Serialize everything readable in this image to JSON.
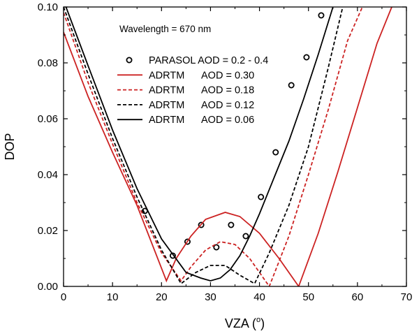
{
  "chart_data": {
    "type": "line",
    "annotation": "Wavelength = 670 nm",
    "xlabel": "VZA (",
    "xlabel_sup": "o",
    "xlabel_end": ")",
    "ylabel": "DOP",
    "xlim": [
      0,
      70
    ],
    "ylim": [
      0,
      0.1
    ],
    "x_ticks": [
      0,
      10,
      20,
      30,
      40,
      50,
      60,
      70
    ],
    "x_tick_labels": [
      "0",
      "10",
      "20",
      "30",
      "40",
      "50",
      "60",
      "70"
    ],
    "y_ticks": [
      0,
      0.02,
      0.04,
      0.06,
      0.08,
      0.1
    ],
    "y_tick_labels": [
      "0.00",
      "0.02",
      "0.04",
      "0.06",
      "0.08",
      "0.10"
    ],
    "grid": false,
    "legend_position": "upper-center",
    "series": [
      {
        "name": "PARASOL AOD = 0.2 - 0.4",
        "legend_label": "PARASOL AOD = 0.2 - 0.4",
        "style": "markers",
        "marker": "open-circle",
        "color": "#000000",
        "x": [
          16.6,
          22.3,
          25.3,
          28.1,
          31.2,
          34.2,
          37.2,
          40.3,
          43.3,
          46.5,
          49.6,
          52.6
        ],
        "y": [
          0.027,
          0.011,
          0.016,
          0.022,
          0.014,
          0.022,
          0.018,
          0.032,
          0.048,
          0.072,
          0.082,
          0.097
        ]
      },
      {
        "name": "ADRTM AOD = 0.30",
        "legend_label": "ADRTM",
        "legend_aod": "AOD = 0.30",
        "style": "solid",
        "color": "#cc2222",
        "x": [
          0,
          5,
          10,
          15,
          21,
          23,
          26,
          29,
          33,
          36,
          40,
          44,
          48,
          52,
          56,
          60,
          64,
          67
        ],
        "y": [
          0.091,
          0.068,
          0.048,
          0.029,
          0.002,
          0.01,
          0.018,
          0.024,
          0.0265,
          0.025,
          0.019,
          0.01,
          0.0,
          0.019,
          0.041,
          0.064,
          0.087,
          0.1
        ]
      },
      {
        "name": "ADRTM AOD = 0.18",
        "legend_label": "ADRTM",
        "legend_aod": "AOD = 0.18",
        "style": "dashed",
        "color": "#cc2222",
        "x": [
          0,
          5,
          10,
          15,
          20,
          24,
          26,
          29,
          32,
          35,
          38,
          42,
          46,
          50,
          54,
          58,
          61
        ],
        "y": [
          0.098,
          0.073,
          0.051,
          0.03,
          0.012,
          0.002,
          0.007,
          0.013,
          0.016,
          0.015,
          0.01,
          0.0,
          0.018,
          0.04,
          0.063,
          0.088,
          0.1
        ]
      },
      {
        "name": "ADRTM AOD = 0.12",
        "legend_label": "ADRTM",
        "legend_aod": "AOD = 0.12",
        "style": "dashed",
        "color": "#000000",
        "x": [
          0,
          5,
          10,
          15,
          20,
          24,
          27,
          30,
          33,
          36,
          39,
          42,
          46,
          50,
          54,
          57
        ],
        "y": [
          0.1,
          0.076,
          0.053,
          0.032,
          0.013,
          0.001,
          0.005,
          0.0075,
          0.0075,
          0.004,
          0.001,
          0.012,
          0.029,
          0.05,
          0.078,
          0.1
        ]
      },
      {
        "name": "ADRTM AOD = 0.06",
        "legend_label": "ADRTM",
        "legend_aod": "AOD = 0.06",
        "style": "solid",
        "color": "#000000",
        "x": [
          0.5,
          5,
          10,
          15,
          20,
          25,
          28,
          30,
          32,
          34,
          36,
          38,
          40,
          43,
          46,
          49,
          52,
          55
        ],
        "y": [
          0.1,
          0.079,
          0.056,
          0.035,
          0.017,
          0.005,
          0.003,
          0.002,
          0.003,
          0.006,
          0.011,
          0.018,
          0.026,
          0.039,
          0.052,
          0.067,
          0.083,
          0.1
        ]
      }
    ]
  }
}
